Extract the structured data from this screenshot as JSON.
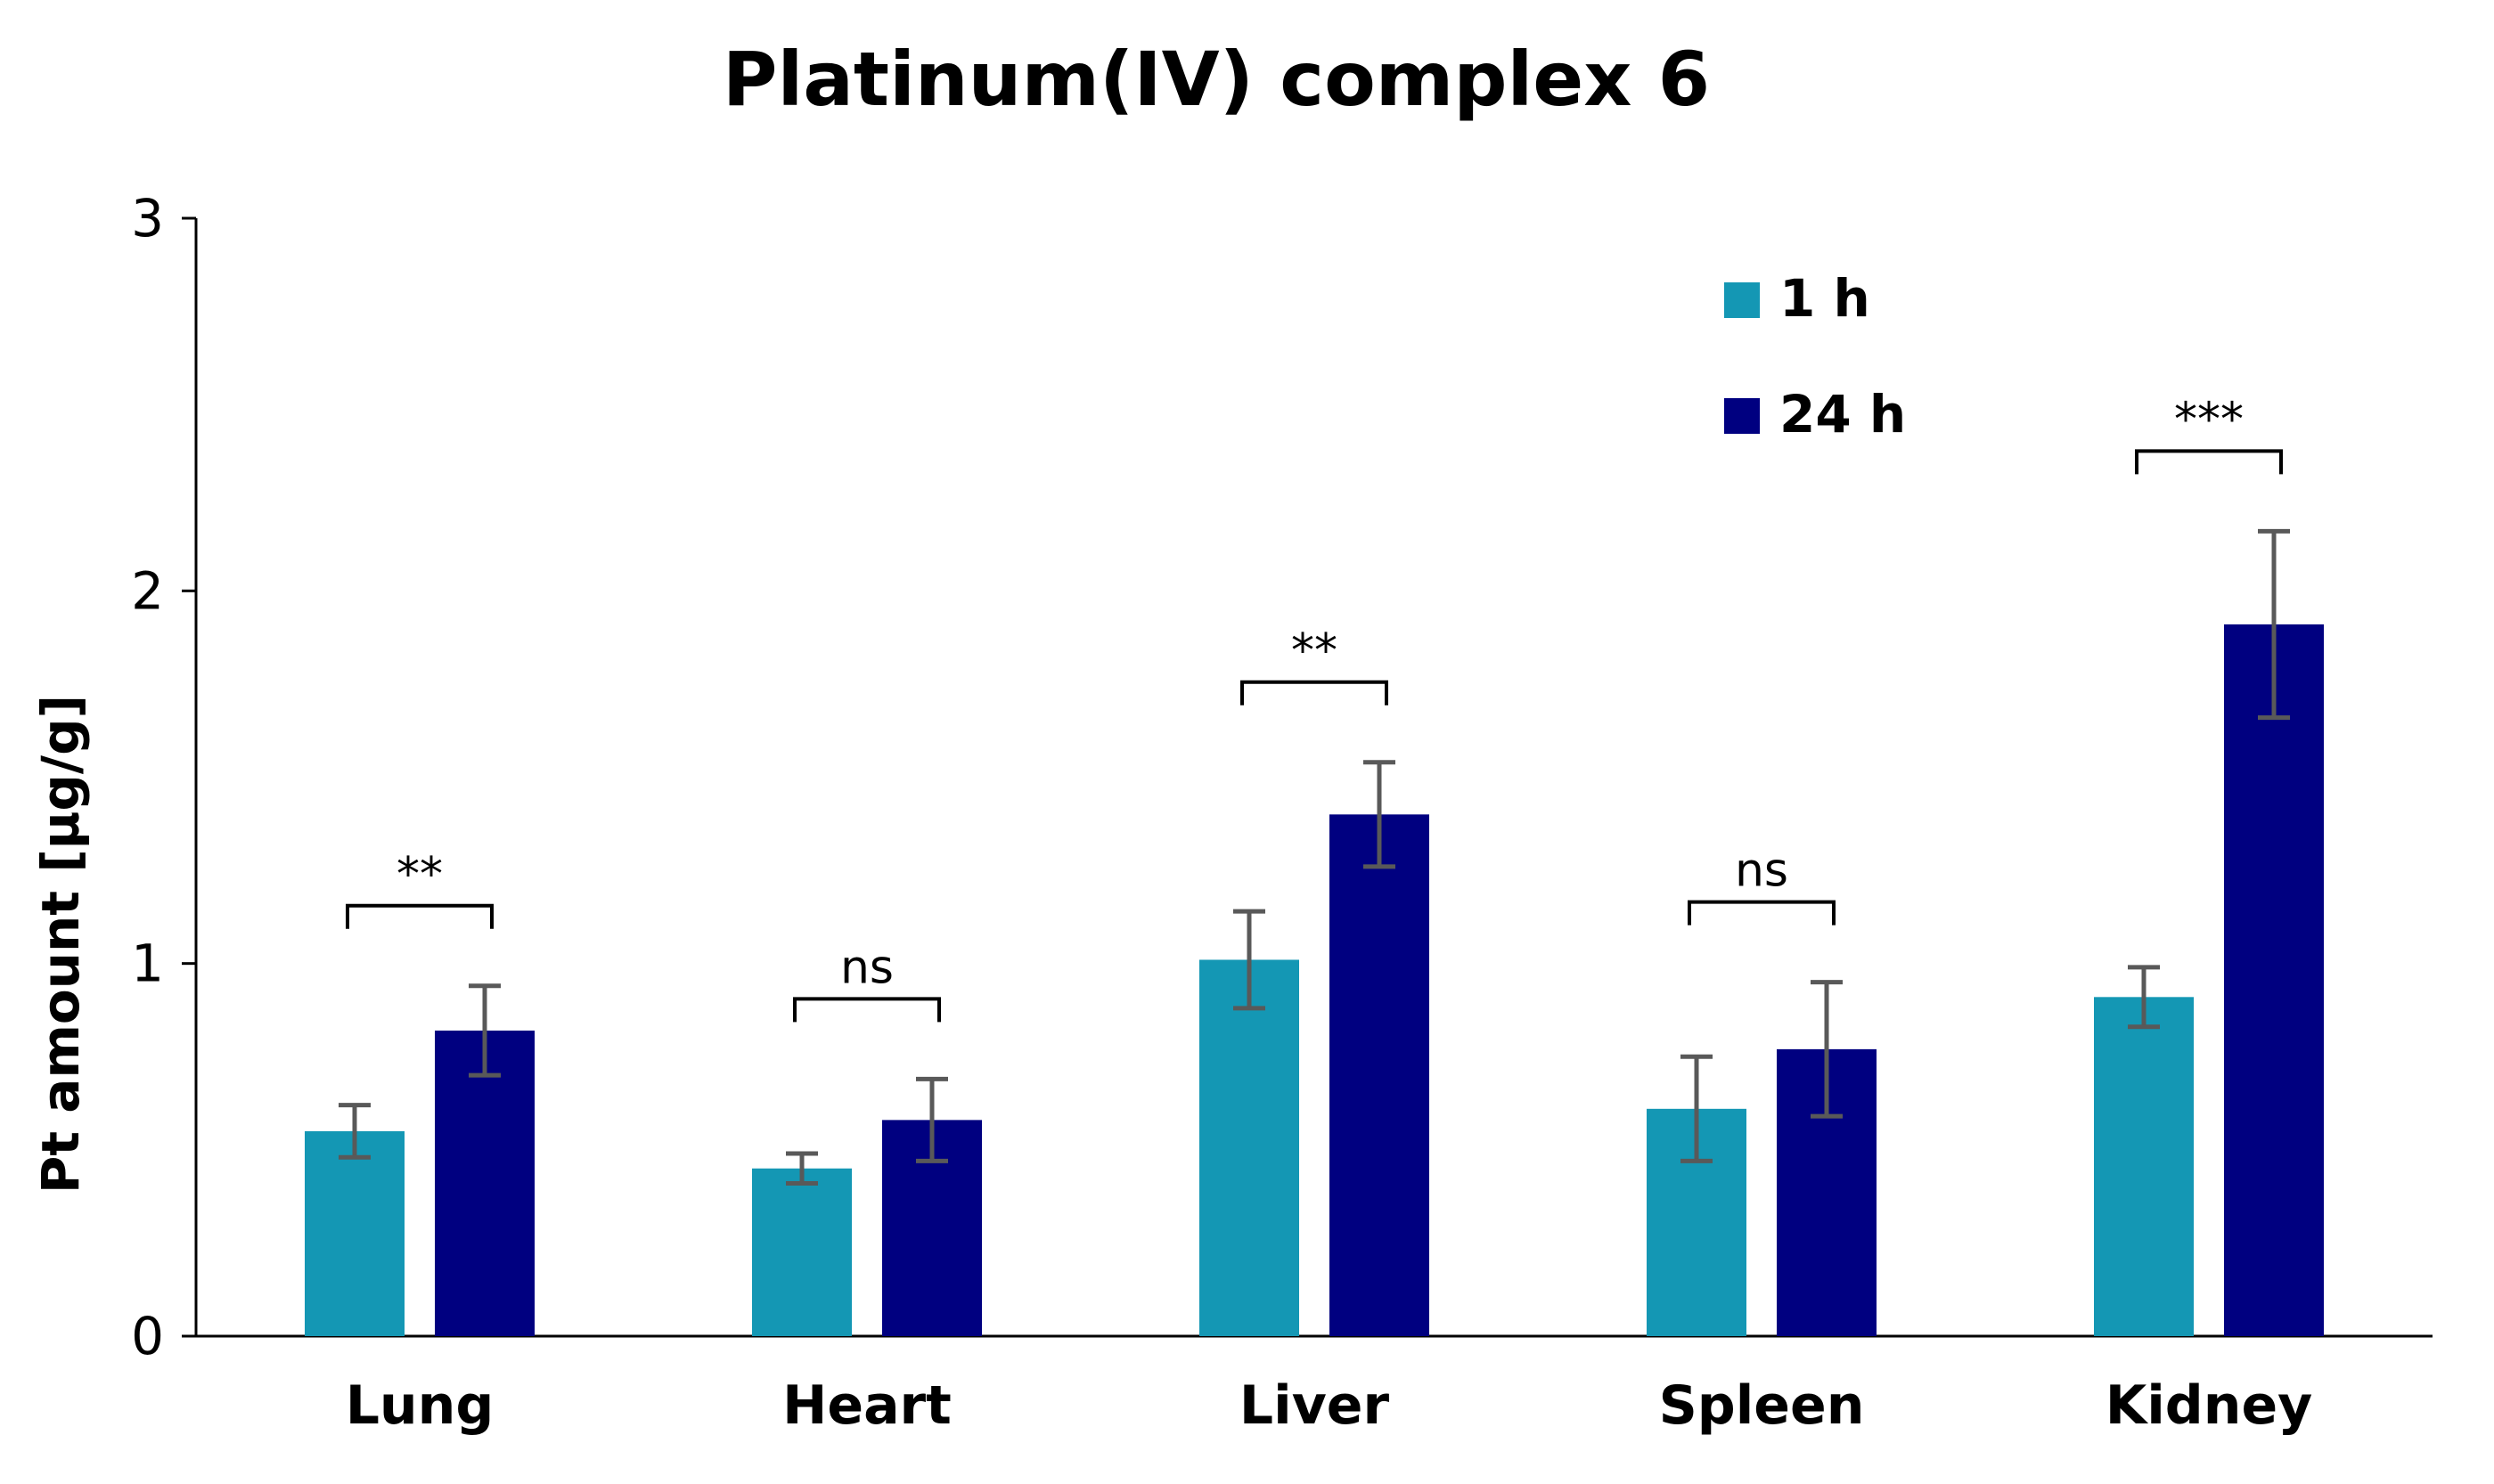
{
  "chart_data": {
    "type": "bar",
    "title": "Platinum(IV) complex 6",
    "xlabel": "",
    "ylabel": "Pt amount [µg/g]",
    "ylim": [
      0,
      3
    ],
    "yticks": [
      0,
      1,
      2,
      3
    ],
    "grid": false,
    "legend_position": "top-right",
    "categories": [
      "Lung",
      "Heart",
      "Liver",
      "Spleen",
      "Kidney"
    ],
    "series": [
      {
        "name": "1 h",
        "color": "#1497b4",
        "values": [
          0.55,
          0.45,
          1.01,
          0.61,
          0.91
        ],
        "errors": [
          0.07,
          0.04,
          0.13,
          0.14,
          0.08
        ]
      },
      {
        "name": "24 h",
        "color": "#000080",
        "values": [
          0.82,
          0.58,
          1.4,
          0.77,
          1.91
        ],
        "errors": [
          0.12,
          0.11,
          0.14,
          0.18,
          0.25
        ]
      }
    ],
    "significance": [
      "**",
      "ns",
      "**",
      "ns",
      "***"
    ],
    "error_bar_color": "#595959"
  }
}
